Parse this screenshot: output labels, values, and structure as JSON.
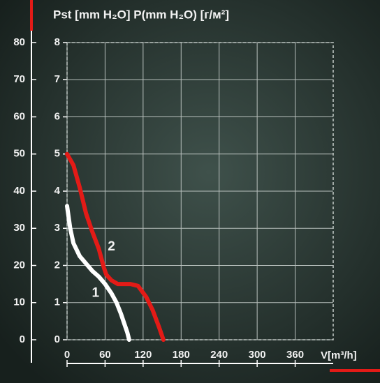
{
  "chart_data": {
    "type": "line",
    "title": "Pst [mm H₂O] P(mm H₂O) [г/м²]",
    "x_label": "V[m³/h]",
    "xlim": [
      0,
      420
    ],
    "xticks": [
      0,
      60,
      120,
      180,
      240,
      300,
      360
    ],
    "ylim": [
      0,
      8
    ],
    "yticks": [
      0,
      1,
      2,
      3,
      4,
      5,
      6,
      7,
      8
    ],
    "y2lim": [
      0,
      80
    ],
    "y2ticks": [
      0,
      10,
      20,
      30,
      40,
      50,
      60,
      70,
      80
    ],
    "grid": true,
    "series": [
      {
        "name": "1",
        "color": "#ffffff",
        "x": [
          0,
          5,
          10,
          20,
          30,
          40,
          50,
          60,
          70,
          78,
          85,
          90,
          95,
          98
        ],
        "values": [
          3.6,
          3.0,
          2.6,
          2.25,
          2.05,
          1.85,
          1.7,
          1.5,
          1.25,
          1.0,
          0.7,
          0.45,
          0.2,
          0
        ]
      },
      {
        "name": "2",
        "color": "#e31b17",
        "x": [
          0,
          10,
          20,
          30,
          40,
          50,
          58,
          62,
          70,
          80,
          100,
          112,
          125,
          135,
          145,
          152
        ],
        "values": [
          5.0,
          4.7,
          4.1,
          3.4,
          2.9,
          2.45,
          1.95,
          1.75,
          1.6,
          1.5,
          1.5,
          1.45,
          1.15,
          0.8,
          0.35,
          0
        ]
      }
    ]
  }
}
